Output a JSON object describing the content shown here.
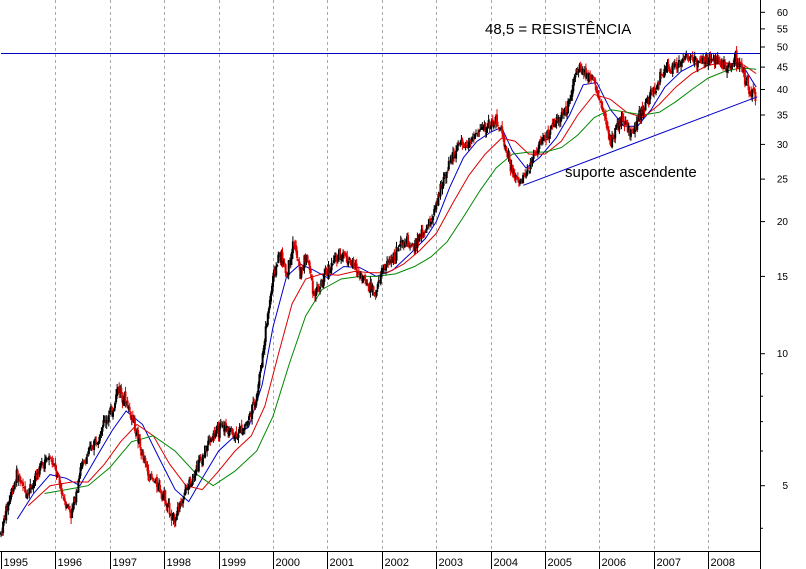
{
  "chart_data": {
    "type": "candlestick",
    "y_scale": "log",
    "ylim": [
      3.55,
      64
    ],
    "y_ticks": [
      5,
      10,
      15,
      20,
      25,
      30,
      35,
      40,
      45,
      50,
      55,
      60
    ],
    "y_tick_labels": [
      "5",
      "10",
      "15",
      "20",
      "25",
      "30",
      "35",
      "40",
      "45",
      "50",
      "55",
      "60"
    ],
    "x_range": [
      1995.0,
      2008.95
    ],
    "x_ticks": [
      1995,
      1996,
      1997,
      1998,
      1999,
      2000,
      2001,
      2002,
      2003,
      2004,
      2005,
      2006,
      2007,
      2008
    ],
    "x_tick_labels": [
      "1995",
      "1996",
      "1997",
      "1998",
      "1999",
      "2000",
      "2001",
      "2002",
      "2003",
      "2004",
      "2005",
      "2006",
      "2007",
      "2008"
    ],
    "grid": "vertical-dashed",
    "price": [
      [
        1995.0,
        3.9
      ],
      [
        1995.1,
        4.4
      ],
      [
        1995.2,
        4.9
      ],
      [
        1995.3,
        5.3
      ],
      [
        1995.45,
        4.8
      ],
      [
        1995.6,
        5.1
      ],
      [
        1995.75,
        5.6
      ],
      [
        1995.9,
        5.8
      ],
      [
        1996.0,
        5.4
      ],
      [
        1996.15,
        4.7
      ],
      [
        1996.3,
        4.3
      ],
      [
        1996.45,
        5.4
      ],
      [
        1996.6,
        5.9
      ],
      [
        1996.75,
        6.4
      ],
      [
        1996.9,
        7.0
      ],
      [
        1997.05,
        7.4
      ],
      [
        1997.15,
        8.4
      ],
      [
        1997.3,
        7.8
      ],
      [
        1997.45,
        6.9
      ],
      [
        1997.6,
        5.8
      ],
      [
        1997.75,
        5.2
      ],
      [
        1997.9,
        5.0
      ],
      [
        1998.05,
        4.6
      ],
      [
        1998.15,
        4.1
      ],
      [
        1998.3,
        4.6
      ],
      [
        1998.45,
        5.0
      ],
      [
        1998.55,
        5.4
      ],
      [
        1998.7,
        5.8
      ],
      [
        1998.85,
        6.4
      ],
      [
        1999.0,
        6.7
      ],
      [
        1999.15,
        6.8
      ],
      [
        1999.3,
        6.5
      ],
      [
        1999.45,
        6.8
      ],
      [
        1999.55,
        7.1
      ],
      [
        1999.7,
        8.0
      ],
      [
        1999.8,
        9.8
      ],
      [
        1999.9,
        12.2
      ],
      [
        2000.0,
        14.8
      ],
      [
        2000.12,
        17.0
      ],
      [
        2000.25,
        15.2
      ],
      [
        2000.38,
        18.0
      ],
      [
        2000.5,
        15.2
      ],
      [
        2000.62,
        16.8
      ],
      [
        2000.75,
        13.8
      ],
      [
        2000.9,
        14.4
      ],
      [
        2001.0,
        15.4
      ],
      [
        2001.15,
        16.4
      ],
      [
        2001.3,
        17.0
      ],
      [
        2001.45,
        16.0
      ],
      [
        2001.6,
        15.2
      ],
      [
        2001.75,
        14.4
      ],
      [
        2001.9,
        13.8
      ],
      [
        2002.0,
        15.4
      ],
      [
        2002.15,
        16.3
      ],
      [
        2002.3,
        17.3
      ],
      [
        2002.45,
        18.0
      ],
      [
        2002.55,
        17.2
      ],
      [
        2002.7,
        18.4
      ],
      [
        2002.85,
        19.6
      ],
      [
        2003.0,
        21.5
      ],
      [
        2003.1,
        24.5
      ],
      [
        2003.25,
        27.5
      ],
      [
        2003.4,
        29.5
      ],
      [
        2003.55,
        30.0
      ],
      [
        2003.7,
        31.5
      ],
      [
        2003.85,
        32.5
      ],
      [
        2004.0,
        33.5
      ],
      [
        2004.12,
        34.0
      ],
      [
        2004.25,
        30.5
      ],
      [
        2004.35,
        27.0
      ],
      [
        2004.45,
        25.0
      ],
      [
        2004.55,
        24.5
      ],
      [
        2004.7,
        26.5
      ],
      [
        2004.85,
        29.5
      ],
      [
        2004.95,
        30.5
      ],
      [
        2005.1,
        32.0
      ],
      [
        2005.25,
        34.5
      ],
      [
        2005.4,
        36.0
      ],
      [
        2005.55,
        43.0
      ],
      [
        2005.65,
        45.0
      ],
      [
        2005.8,
        43.5
      ],
      [
        2005.92,
        41.0
      ],
      [
        2006.0,
        38.0
      ],
      [
        2006.1,
        34.0
      ],
      [
        2006.2,
        30.5
      ],
      [
        2006.3,
        32.5
      ],
      [
        2006.4,
        34.0
      ],
      [
        2006.5,
        33.0
      ],
      [
        2006.6,
        31.5
      ],
      [
        2006.7,
        34.5
      ],
      [
        2006.8,
        36.0
      ],
      [
        2006.9,
        38.0
      ],
      [
        2007.0,
        39.5
      ],
      [
        2007.1,
        42.0
      ],
      [
        2007.2,
        44.0
      ],
      [
        2007.35,
        45.0
      ],
      [
        2007.5,
        46.0
      ],
      [
        2007.6,
        48.0
      ],
      [
        2007.7,
        47.5
      ],
      [
        2007.85,
        46.0
      ],
      [
        2007.95,
        46.5
      ],
      [
        2008.1,
        47.0
      ],
      [
        2008.25,
        46.0
      ],
      [
        2008.4,
        44.5
      ],
      [
        2008.5,
        47.0
      ],
      [
        2008.6,
        45.0
      ],
      [
        2008.7,
        42.0
      ],
      [
        2008.78,
        38.5
      ],
      [
        2008.82,
        40.5
      ],
      [
        2008.88,
        38.0
      ]
    ],
    "moving_averages": [
      {
        "color": "#0000cc",
        "values": [
          [
            1995.3,
            4.2
          ],
          [
            1995.6,
            4.8
          ],
          [
            1995.9,
            5.3
          ],
          [
            1996.2,
            5.2
          ],
          [
            1996.45,
            5.0
          ],
          [
            1996.75,
            5.8
          ],
          [
            1997.05,
            6.7
          ],
          [
            1997.3,
            7.4
          ],
          [
            1997.6,
            6.9
          ],
          [
            1997.9,
            5.8
          ],
          [
            1998.2,
            4.9
          ],
          [
            1998.45,
            4.6
          ],
          [
            1998.7,
            5.2
          ],
          [
            1999.0,
            6.0
          ],
          [
            1999.3,
            6.5
          ],
          [
            1999.55,
            6.8
          ],
          [
            1999.8,
            8.5
          ],
          [
            2000.0,
            11.5
          ],
          [
            2000.25,
            15.0
          ],
          [
            2000.5,
            16.0
          ],
          [
            2000.75,
            15.5
          ],
          [
            2001.0,
            14.9
          ],
          [
            2001.3,
            15.8
          ],
          [
            2001.6,
            15.7
          ],
          [
            2001.9,
            15.0
          ],
          [
            2002.2,
            15.5
          ],
          [
            2002.5,
            16.8
          ],
          [
            2002.8,
            18.3
          ],
          [
            2003.0,
            20.0
          ],
          [
            2003.25,
            24.0
          ],
          [
            2003.5,
            28.0
          ],
          [
            2003.75,
            30.5
          ],
          [
            2004.0,
            32.0
          ],
          [
            2004.2,
            32.8
          ],
          [
            2004.4,
            29.0
          ],
          [
            2004.65,
            26.5
          ],
          [
            2004.9,
            28.0
          ],
          [
            2005.2,
            31.0
          ],
          [
            2005.45,
            35.0
          ],
          [
            2005.7,
            41.0
          ],
          [
            2005.95,
            41.5
          ],
          [
            2006.2,
            36.0
          ],
          [
            2006.45,
            33.0
          ],
          [
            2006.7,
            33.0
          ],
          [
            2006.95,
            36.0
          ],
          [
            2007.2,
            40.5
          ],
          [
            2007.5,
            44.0
          ],
          [
            2007.8,
            46.0
          ],
          [
            2008.1,
            46.5
          ],
          [
            2008.4,
            45.8
          ],
          [
            2008.65,
            45.0
          ],
          [
            2008.88,
            40.5
          ]
        ]
      },
      {
        "color": "#dd0000",
        "values": [
          [
            1995.5,
            4.5
          ],
          [
            1995.9,
            5.0
          ],
          [
            1996.3,
            5.1
          ],
          [
            1996.6,
            5.1
          ],
          [
            1996.9,
            5.6
          ],
          [
            1997.2,
            6.3
          ],
          [
            1997.5,
            6.9
          ],
          [
            1997.8,
            6.5
          ],
          [
            1998.1,
            5.6
          ],
          [
            1998.4,
            5.0
          ],
          [
            1998.7,
            4.9
          ],
          [
            1999.0,
            5.4
          ],
          [
            1999.3,
            6.0
          ],
          [
            1999.6,
            6.5
          ],
          [
            1999.85,
            7.6
          ],
          [
            2000.1,
            10.0
          ],
          [
            2000.35,
            13.0
          ],
          [
            2000.6,
            14.8
          ],
          [
            2000.9,
            15.2
          ],
          [
            2001.2,
            15.1
          ],
          [
            2001.5,
            15.4
          ],
          [
            2001.8,
            15.3
          ],
          [
            2002.1,
            15.3
          ],
          [
            2002.4,
            16.0
          ],
          [
            2002.7,
            17.2
          ],
          [
            2003.0,
            18.8
          ],
          [
            2003.3,
            22.0
          ],
          [
            2003.6,
            25.5
          ],
          [
            2003.9,
            28.5
          ],
          [
            2004.2,
            31.0
          ],
          [
            2004.45,
            30.5
          ],
          [
            2004.7,
            28.5
          ],
          [
            2005.0,
            28.5
          ],
          [
            2005.3,
            30.5
          ],
          [
            2005.6,
            35.0
          ],
          [
            2005.9,
            39.0
          ],
          [
            2006.2,
            38.0
          ],
          [
            2006.5,
            35.5
          ],
          [
            2006.8,
            34.5
          ],
          [
            2007.1,
            37.0
          ],
          [
            2007.4,
            40.5
          ],
          [
            2007.7,
            43.5
          ],
          [
            2008.0,
            45.5
          ],
          [
            2008.35,
            46.0
          ],
          [
            2008.65,
            45.5
          ],
          [
            2008.88,
            43.5
          ]
        ]
      },
      {
        "color": "#008800",
        "values": [
          [
            1995.8,
            4.8
          ],
          [
            1996.2,
            4.9
          ],
          [
            1996.6,
            5.0
          ],
          [
            1997.0,
            5.5
          ],
          [
            1997.4,
            6.3
          ],
          [
            1997.8,
            6.5
          ],
          [
            1998.2,
            6.0
          ],
          [
            1998.6,
            5.3
          ],
          [
            1998.9,
            5.0
          ],
          [
            1999.3,
            5.4
          ],
          [
            1999.7,
            6.0
          ],
          [
            2000.0,
            7.2
          ],
          [
            2000.3,
            9.5
          ],
          [
            2000.6,
            12.2
          ],
          [
            2000.9,
            14.0
          ],
          [
            2001.25,
            14.8
          ],
          [
            2001.6,
            15.0
          ],
          [
            2001.9,
            15.0
          ],
          [
            2002.25,
            15.2
          ],
          [
            2002.6,
            15.8
          ],
          [
            2002.9,
            16.6
          ],
          [
            2003.2,
            18.0
          ],
          [
            2003.5,
            20.5
          ],
          [
            2003.8,
            23.5
          ],
          [
            2004.1,
            26.5
          ],
          [
            2004.4,
            28.5
          ],
          [
            2004.7,
            28.8
          ],
          [
            2005.0,
            28.8
          ],
          [
            2005.3,
            29.5
          ],
          [
            2005.6,
            31.5
          ],
          [
            2005.9,
            34.5
          ],
          [
            2006.2,
            36.0
          ],
          [
            2006.5,
            35.5
          ],
          [
            2006.8,
            35.0
          ],
          [
            2007.1,
            35.5
          ],
          [
            2007.4,
            37.5
          ],
          [
            2007.7,
            40.0
          ],
          [
            2008.0,
            42.5
          ],
          [
            2008.3,
            44.0
          ],
          [
            2008.6,
            44.8
          ],
          [
            2008.88,
            44.5
          ]
        ]
      }
    ],
    "resistance": {
      "value": 48.5,
      "color": "#0000cc"
    },
    "support_line": {
      "from": [
        2004.6,
        24.2
      ],
      "to": [
        2008.9,
        38.5
      ],
      "color": "#0000cc"
    },
    "annotations": [
      {
        "id": "resistance",
        "text": "48,5 = RESISTÊNCIA"
      },
      {
        "id": "support",
        "text": "suporte ascendente"
      }
    ]
  }
}
